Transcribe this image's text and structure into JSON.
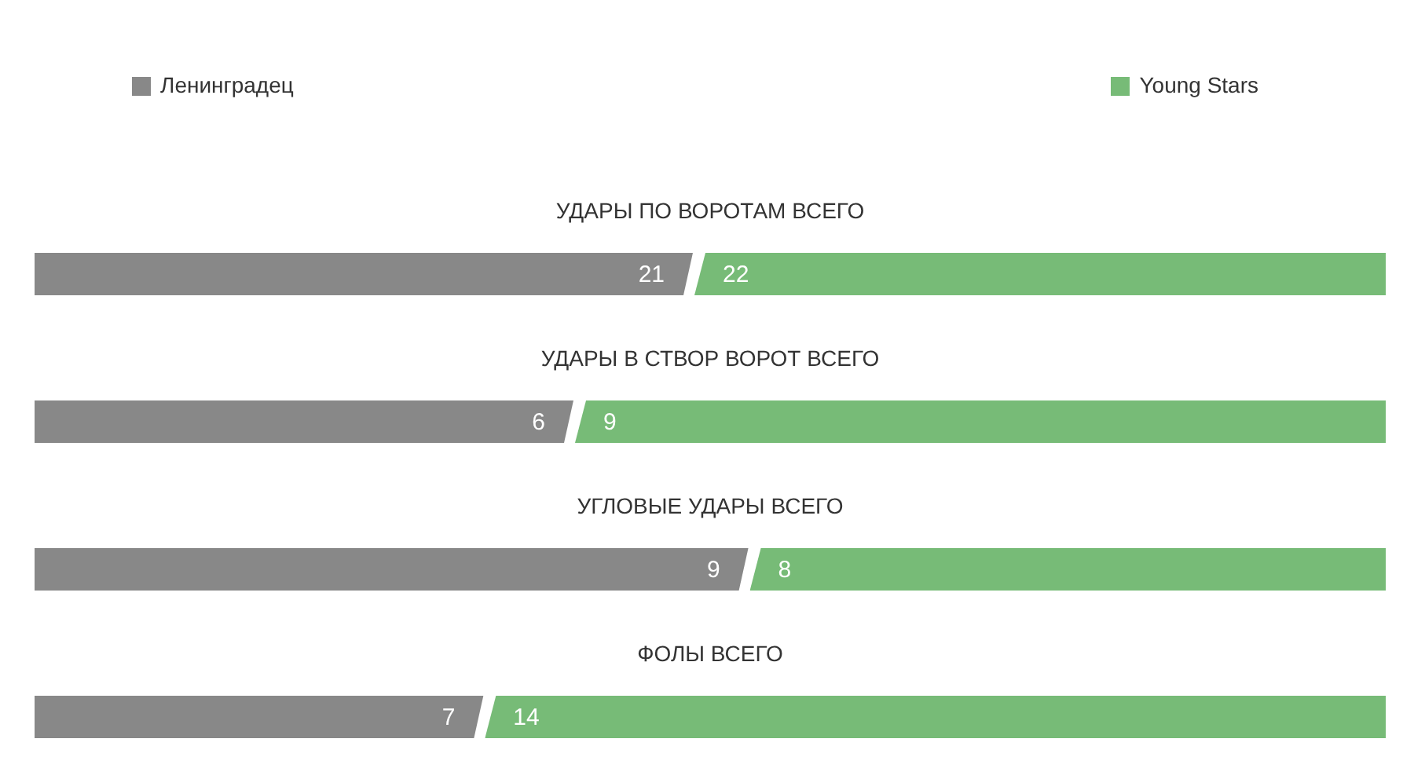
{
  "chart_data": [
    {
      "type": "bar",
      "orientation": "horizontal",
      "stacked": true,
      "title": "УДАРЫ ПО ВОРОТАМ ВСЕГО",
      "categories": [
        null
      ],
      "series": [
        {
          "name": "Ленинградец",
          "color": "#888888",
          "values": [
            21
          ]
        },
        {
          "name": "Young Stars",
          "color": "#77bb77",
          "values": [
            22
          ]
        }
      ],
      "xlim": [
        0,
        43
      ],
      "data_labels": true,
      "legend": "top",
      "tick_labels": false
    },
    {
      "type": "bar",
      "orientation": "horizontal",
      "stacked": true,
      "title": "УДАРЫ В СТВОР ВОРОТ ВСЕГО",
      "categories": [
        null
      ],
      "series": [
        {
          "color": "#888888",
          "values": [
            6
          ]
        },
        {
          "color": "#77bb77",
          "values": [
            9
          ]
        }
      ],
      "xlim": [
        0,
        15
      ],
      "data_labels": true,
      "tick_labels": false
    },
    {
      "type": "bar",
      "orientation": "horizontal",
      "stacked": true,
      "title": "УГЛОВЫЕ УДАРЫ ВСЕГО",
      "categories": [
        null
      ],
      "series": [
        {
          "color": "#888888",
          "values": [
            9
          ]
        },
        {
          "color": "#77bb77",
          "values": [
            8
          ]
        }
      ],
      "xlim": [
        0,
        17
      ],
      "data_labels": true,
      "tick_labels": false
    },
    {
      "type": "bar",
      "orientation": "horizontal",
      "stacked": true,
      "title": "ФОЛЫ ВСЕГО",
      "categories": [
        null
      ],
      "series": [
        {
          "color": "#888888",
          "values": [
            7
          ]
        },
        {
          "color": "#77bb77",
          "values": [
            14
          ]
        }
      ],
      "xlim": [
        0,
        21
      ],
      "data_labels": true,
      "tick_labels": false
    }
  ]
}
